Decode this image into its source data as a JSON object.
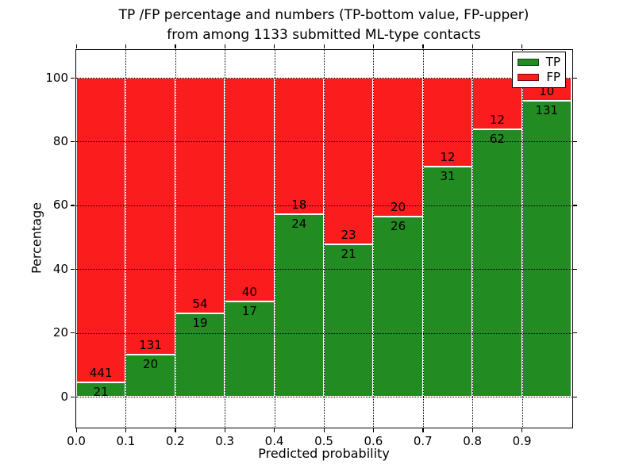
{
  "title": {
    "line1": "TP /FP percentage and numbers (TP-bottom value, FP-upper)",
    "line2": "from among 1133 submitted ML-type contacts"
  },
  "axes": {
    "ylabel": "Percentage",
    "xlabel": "Predicted probability"
  },
  "legend": {
    "items": [
      {
        "label": "TP",
        "color": "#228b22"
      },
      {
        "label": "FP",
        "color": "#fb1d1d"
      }
    ]
  },
  "chart_data": {
    "type": "bar",
    "stacked": true,
    "normalized": "each bar totals 100%",
    "title": "TP /FP percentage and numbers (TP-bottom value, FP-upper) from among 1133 submitted ML-type contacts",
    "xlabel": "Predicted probability",
    "ylabel": "Percentage",
    "total_contacts": 1133,
    "bin_edges": [
      0.0,
      0.1,
      0.2,
      0.3,
      0.4,
      0.5,
      0.6,
      0.7,
      0.8,
      0.9,
      1.0
    ],
    "x_tick_values": [
      0.0,
      0.1,
      0.2,
      0.3,
      0.4,
      0.5,
      0.6,
      0.7,
      0.8,
      0.9
    ],
    "x_tick_labels": [
      "0.0",
      "0.1",
      "0.2",
      "0.3",
      "0.4",
      "0.5",
      "0.6",
      "0.7",
      "0.8",
      "0.9"
    ],
    "y_tick_values": [
      0,
      20,
      40,
      60,
      80,
      100
    ],
    "y_tick_labels": [
      "0",
      "20",
      "40",
      "60",
      "80",
      "100"
    ],
    "xlim": [
      0.0,
      1.0
    ],
    "ylim": [
      -9.5,
      108.7
    ],
    "grid": "dotted",
    "legend_position": "upper right",
    "series": [
      {
        "name": "TP",
        "color": "#228b22",
        "position": "bottom",
        "counts": [
          21,
          20,
          19,
          17,
          24,
          21,
          26,
          31,
          62,
          131
        ]
      },
      {
        "name": "FP",
        "color": "#fb1d1d",
        "position": "top",
        "counts": [
          441,
          131,
          54,
          40,
          18,
          23,
          20,
          12,
          12,
          10
        ]
      }
    ],
    "tp_percent_of_bar": [
      4.5,
      13.2,
      26.0,
      29.8,
      57.1,
      47.7,
      56.5,
      72.1,
      83.8,
      92.9
    ]
  }
}
